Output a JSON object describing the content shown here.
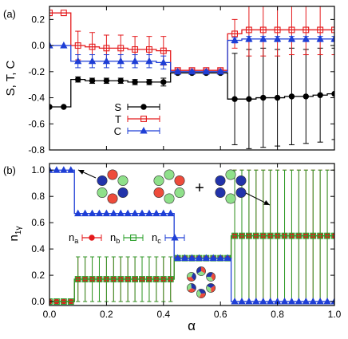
{
  "chart_data": [
    {
      "type": "line",
      "panel_label": "(a)",
      "ylabel": "S, T, C",
      "xlabel": "",
      "xlim": [
        0.0,
        1.0
      ],
      "ylim": [
        -0.8,
        0.3
      ],
      "xticks": [
        0.0,
        0.2,
        0.4,
        0.6,
        0.8,
        1.0
      ],
      "xtick_labels": [
        "",
        "",
        "",
        "",
        "",
        ""
      ],
      "yticks": [
        -0.8,
        -0.6,
        -0.4,
        -0.2,
        0.0,
        0.2
      ],
      "ytick_labels": [
        "-0.8",
        "-0.6",
        "-0.4",
        "-0.2",
        "0.0",
        "0.2"
      ],
      "legend_position": "lower-left",
      "series": [
        {
          "name": "S",
          "color": "#000000",
          "marker": "filled-circle",
          "x": [
            0.0,
            0.05,
            0.1,
            0.15,
            0.2,
            0.25,
            0.3,
            0.35,
            0.4,
            0.45,
            0.5,
            0.55,
            0.6,
            0.65,
            0.7,
            0.75,
            0.8,
            0.85,
            0.9,
            0.95,
            1.0
          ],
          "values": [
            -0.47,
            -0.47,
            -0.26,
            -0.27,
            -0.27,
            -0.27,
            -0.28,
            -0.28,
            -0.28,
            -0.21,
            -0.21,
            -0.21,
            -0.21,
            -0.41,
            -0.41,
            -0.4,
            -0.4,
            -0.39,
            -0.39,
            -0.38,
            -0.37
          ],
          "err": [
            0,
            0,
            0.02,
            0.02,
            0.02,
            0.02,
            0.02,
            0.02,
            0.03,
            0.01,
            0.01,
            0.01,
            0.01,
            0.35,
            0.38,
            0.38,
            0.37,
            0.37,
            0.36,
            0.36,
            0.35
          ]
        },
        {
          "name": "T",
          "color": "#e41a1c",
          "marker": "open-square",
          "x": [
            0.0,
            0.05,
            0.1,
            0.15,
            0.2,
            0.25,
            0.3,
            0.35,
            0.4,
            0.45,
            0.5,
            0.55,
            0.6,
            0.65,
            0.7,
            0.75,
            0.8,
            0.85,
            0.9,
            0.95,
            1.0
          ],
          "values": [
            0.25,
            0.25,
            0.0,
            -0.01,
            -0.02,
            -0.02,
            -0.03,
            -0.03,
            -0.04,
            -0.19,
            -0.19,
            -0.19,
            -0.19,
            0.09,
            0.12,
            0.12,
            0.12,
            0.12,
            0.12,
            0.12,
            0.12
          ],
          "err": [
            0,
            0,
            0.11,
            0.11,
            0.1,
            0.1,
            0.1,
            0.1,
            0.11,
            0.01,
            0.01,
            0.01,
            0.01,
            0.11,
            0.2,
            0.2,
            0.2,
            0.19,
            0.19,
            0.19,
            0.19
          ]
        },
        {
          "name": "C",
          "color": "#1f3fd6",
          "marker": "filled-triangle",
          "x": [
            0.0,
            0.05,
            0.1,
            0.15,
            0.2,
            0.25,
            0.3,
            0.35,
            0.4,
            0.45,
            0.5,
            0.55,
            0.6,
            0.65,
            0.7,
            0.75,
            0.8,
            0.85,
            0.9,
            0.95,
            1.0
          ],
          "values": [
            0.0,
            0.0,
            -0.12,
            -0.12,
            -0.12,
            -0.12,
            -0.12,
            -0.12,
            -0.13,
            -0.2,
            -0.2,
            -0.2,
            -0.2,
            0.04,
            0.05,
            0.05,
            0.05,
            0.05,
            0.05,
            0.05,
            0.05
          ],
          "err": [
            0,
            0,
            0.05,
            0.05,
            0.05,
            0.05,
            0.05,
            0.05,
            0.05,
            0.01,
            0.01,
            0.01,
            0.01,
            0.02,
            0.02,
            0.02,
            0.02,
            0.02,
            0.02,
            0.02,
            0.02
          ]
        }
      ]
    },
    {
      "type": "line",
      "panel_label": "(b)",
      "ylabel": "n1γ",
      "ylabel_main": "n",
      "ylabel_sub": "1γ",
      "xlabel": "α",
      "xlim": [
        0.0,
        1.0
      ],
      "ylim": [
        -0.03,
        1.05
      ],
      "xticks": [
        0.0,
        0.2,
        0.4,
        0.6,
        0.8,
        1.0
      ],
      "xtick_labels": [
        "0.0",
        "0.2",
        "0.4",
        "0.6",
        "0.8",
        "1.0"
      ],
      "yticks": [
        0.0,
        0.2,
        0.4,
        0.6,
        0.8,
        1.0
      ],
      "ytick_labels": [
        "0.0",
        "0.2",
        "0.4",
        "0.6",
        "0.8",
        "1.0"
      ],
      "legend_position": "middle-left",
      "legend_labels": [
        {
          "main": "n",
          "sub": "a"
        },
        {
          "main": "n",
          "sub": "b"
        },
        {
          "main": "n",
          "sub": "c"
        }
      ],
      "insets": [
        "ring-red-green-blue",
        "ring-red-green",
        "ring-green-blue",
        "ring-mixed"
      ],
      "inset_symbol": "+",
      "series": [
        {
          "name": "na",
          "color": "#e41a1c",
          "marker": "filled-circle",
          "x": [
            0.0,
            0.025,
            0.05,
            0.075,
            0.1,
            0.125,
            0.15,
            0.175,
            0.2,
            0.225,
            0.25,
            0.275,
            0.3,
            0.325,
            0.35,
            0.375,
            0.4,
            0.425,
            0.45,
            0.475,
            0.5,
            0.525,
            0.55,
            0.575,
            0.6,
            0.625,
            0.65,
            0.675,
            0.7,
            0.725,
            0.75,
            0.775,
            0.8,
            0.825,
            0.85,
            0.875,
            0.9,
            0.925,
            0.95,
            0.975,
            1.0
          ],
          "values": [
            0.0,
            0.0,
            0.0,
            0.0,
            0.17,
            0.17,
            0.17,
            0.17,
            0.17,
            0.17,
            0.17,
            0.17,
            0.17,
            0.17,
            0.17,
            0.17,
            0.17,
            0.17,
            0.33,
            0.33,
            0.33,
            0.33,
            0.33,
            0.33,
            0.33,
            0.33,
            0.5,
            0.5,
            0.5,
            0.5,
            0.5,
            0.5,
            0.5,
            0.5,
            0.5,
            0.5,
            0.5,
            0.5,
            0.5,
            0.5,
            0.5
          ],
          "err": [
            0,
            0,
            0,
            0,
            0.17,
            0.17,
            0.17,
            0.17,
            0.17,
            0.17,
            0.17,
            0.17,
            0.17,
            0.17,
            0.17,
            0.17,
            0.17,
            0.17,
            0.01,
            0.01,
            0.01,
            0.01,
            0.01,
            0.01,
            0.01,
            0.01,
            0.5,
            0.5,
            0.5,
            0.5,
            0.5,
            0.5,
            0.5,
            0.5,
            0.5,
            0.5,
            0.5,
            0.5,
            0.5,
            0.5,
            0.5
          ]
        },
        {
          "name": "nb",
          "color": "#2ca02c",
          "marker": "open-square",
          "x": [
            0.0,
            0.025,
            0.05,
            0.075,
            0.1,
            0.125,
            0.15,
            0.175,
            0.2,
            0.225,
            0.25,
            0.275,
            0.3,
            0.325,
            0.35,
            0.375,
            0.4,
            0.425,
            0.45,
            0.475,
            0.5,
            0.525,
            0.55,
            0.575,
            0.6,
            0.625,
            0.65,
            0.675,
            0.7,
            0.725,
            0.75,
            0.775,
            0.8,
            0.825,
            0.85,
            0.875,
            0.9,
            0.925,
            0.95,
            0.975,
            1.0
          ],
          "values": [
            0.0,
            0.0,
            0.0,
            0.0,
            0.17,
            0.17,
            0.17,
            0.17,
            0.17,
            0.17,
            0.17,
            0.17,
            0.17,
            0.17,
            0.17,
            0.17,
            0.17,
            0.17,
            0.33,
            0.33,
            0.33,
            0.33,
            0.33,
            0.33,
            0.33,
            0.33,
            0.5,
            0.5,
            0.5,
            0.5,
            0.5,
            0.5,
            0.5,
            0.5,
            0.5,
            0.5,
            0.5,
            0.5,
            0.5,
            0.5,
            0.5
          ],
          "err": [
            0,
            0,
            0,
            0,
            0.17,
            0.17,
            0.17,
            0.17,
            0.17,
            0.17,
            0.17,
            0.17,
            0.17,
            0.17,
            0.17,
            0.17,
            0.17,
            0.17,
            0.01,
            0.01,
            0.01,
            0.01,
            0.01,
            0.01,
            0.01,
            0.01,
            0.5,
            0.5,
            0.5,
            0.5,
            0.5,
            0.5,
            0.5,
            0.5,
            0.5,
            0.5,
            0.5,
            0.5,
            0.5,
            0.5,
            0.5
          ]
        },
        {
          "name": "nc",
          "color": "#1f3fd6",
          "marker": "filled-triangle",
          "x": [
            0.0,
            0.025,
            0.05,
            0.075,
            0.1,
            0.125,
            0.15,
            0.175,
            0.2,
            0.225,
            0.25,
            0.275,
            0.3,
            0.325,
            0.35,
            0.375,
            0.4,
            0.425,
            0.45,
            0.475,
            0.5,
            0.525,
            0.55,
            0.575,
            0.6,
            0.625,
            0.65,
            0.675,
            0.7,
            0.725,
            0.75,
            0.775,
            0.8,
            0.825,
            0.85,
            0.875,
            0.9,
            0.925,
            0.95,
            0.975,
            1.0
          ],
          "values": [
            1.0,
            1.0,
            1.0,
            1.0,
            0.67,
            0.67,
            0.67,
            0.67,
            0.67,
            0.67,
            0.67,
            0.67,
            0.67,
            0.67,
            0.67,
            0.67,
            0.67,
            0.67,
            0.33,
            0.33,
            0.33,
            0.33,
            0.33,
            0.33,
            0.33,
            0.33,
            0.0,
            0.0,
            0.0,
            0.0,
            0.0,
            0.0,
            0.0,
            0.0,
            0.0,
            0.0,
            0.0,
            0.0,
            0.0,
            0.0,
            0.0
          ],
          "err": [
            0,
            0,
            0,
            0,
            0,
            0,
            0,
            0,
            0,
            0,
            0,
            0,
            0,
            0,
            0,
            0,
            0,
            0,
            0.01,
            0.01,
            0.01,
            0.01,
            0.01,
            0.01,
            0.01,
            0.01,
            0,
            0,
            0,
            0,
            0,
            0,
            0,
            0,
            0,
            0,
            0,
            0,
            0,
            0,
            0
          ]
        }
      ]
    }
  ]
}
